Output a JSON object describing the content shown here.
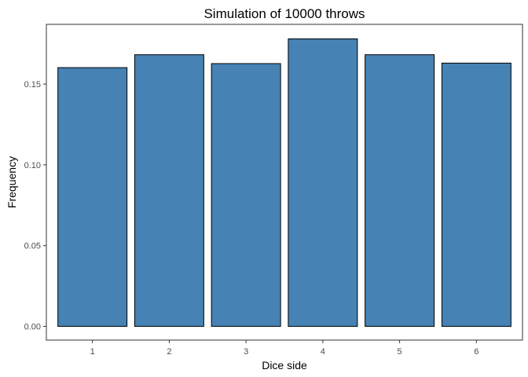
{
  "chart_data": {
    "type": "bar",
    "title": "Simulation of 10000 throws",
    "xlabel": "Dice side",
    "ylabel": "Frequency",
    "categories": [
      "1",
      "2",
      "3",
      "4",
      "5",
      "6"
    ],
    "values": [
      0.1602,
      0.1682,
      0.1627,
      0.178,
      0.1682,
      0.163
    ],
    "ylim": [
      -0.0085,
      0.187
    ],
    "yticks": [
      0.0,
      0.05,
      0.1,
      0.15
    ],
    "ytick_labels": [
      "0.00",
      "0.05",
      "0.10",
      "0.15"
    ],
    "grid": false,
    "bar_fill": "#4682b4",
    "bar_stroke": "#000000"
  }
}
